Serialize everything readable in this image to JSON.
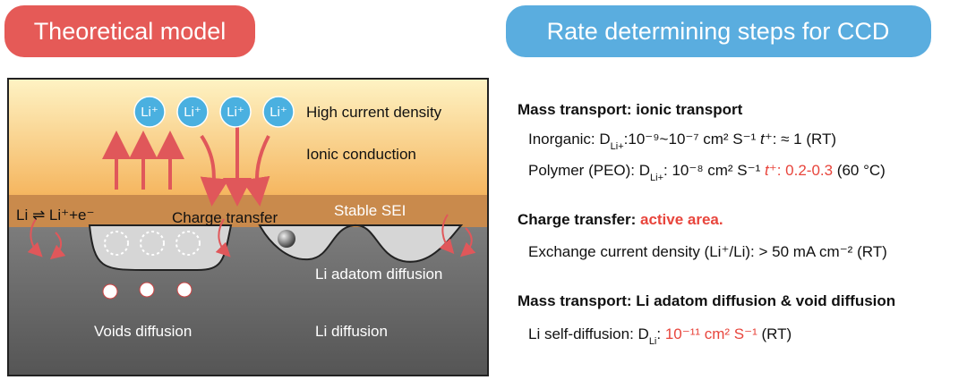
{
  "left_title": "Theoretical model",
  "right_title": "Rate determining steps for CCD",
  "diagram": {
    "ions": [
      "Li⁺",
      "Li⁺",
      "Li⁺",
      "Li⁺"
    ],
    "high_current": "High current density",
    "ionic_conduction": "Ionic conduction",
    "reaction": "Li ⇌ Li⁺+e⁻",
    "charge_transfer": "Charge transfer",
    "sei": "Stable SEI",
    "adatom": "Li adatom diffusion",
    "voids": "Voids diffusion",
    "li_diffusion": "Li diffusion"
  },
  "sections": [
    {
      "heading": [
        {
          "text": "Mass transport: ionic transport"
        }
      ],
      "lines": [
        [
          {
            "text": "Inorganic: D"
          },
          {
            "text": "Li+",
            "sub": true
          },
          {
            "text": ":10⁻⁹~10⁻⁷ cm² S⁻¹  "
          },
          {
            "text": "t⁺",
            "italic": true
          },
          {
            "text": ": ≈ 1 (RT)"
          }
        ],
        [
          {
            "text": "Polymer (PEO):  D"
          },
          {
            "text": "Li+",
            "sub": true
          },
          {
            "text": ": 10⁻⁸ cm² S⁻¹  "
          },
          {
            "text": "t⁺",
            "italic": true,
            "red": true
          },
          {
            "text": ": 0.2-0.3",
            "red": true
          },
          {
            "text": " (60 °C)"
          }
        ]
      ]
    },
    {
      "heading": [
        {
          "text": "Charge transfer: "
        },
        {
          "text": "active area.",
          "red": true
        }
      ],
      "lines": [
        [
          {
            "text": "Exchange current density (Li⁺/Li): > 50 mA cm⁻² (RT)"
          }
        ]
      ]
    },
    {
      "heading": [
        {
          "text": "Mass transport: Li adatom diffusion & void diffusion"
        }
      ],
      "lines": [
        [
          {
            "text": "Li self-diffusion: D"
          },
          {
            "text": "Li",
            "sub": true
          },
          {
            "text": ": "
          },
          {
            "text": "10⁻¹¹ cm² S⁻¹",
            "red": true
          },
          {
            "text": " (RT)"
          }
        ]
      ]
    }
  ]
}
